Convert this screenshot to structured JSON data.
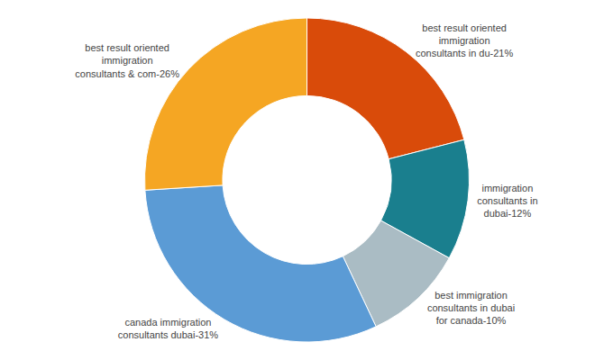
{
  "chart_data": {
    "type": "donut",
    "categories": [
      "best result oriented immigration consultants in du-21%",
      "immigration consultants in dubai-12%",
      "best immigration consultants in dubai for canada-10%",
      "canada immigration consultants dubai-31%",
      "best result oriented immigration consultants & com-26%"
    ],
    "values": [
      21,
      12,
      10,
      31,
      26
    ],
    "colors": [
      "#D94B0A",
      "#1A7F8E",
      "#AABCC4",
      "#5B9BD5",
      "#F5A623"
    ]
  }
}
